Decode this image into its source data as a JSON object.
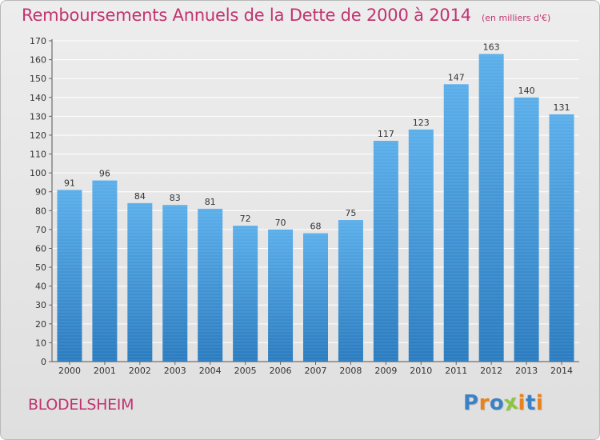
{
  "chart_data": {
    "type": "bar",
    "title": "Remboursements Annuels de la Dette de 2000 à 2014",
    "subtitle": "(en milliers d'€)",
    "xlabel": "",
    "ylabel": "",
    "categories": [
      "2000",
      "2001",
      "2002",
      "2003",
      "2004",
      "2005",
      "2006",
      "2007",
      "2008",
      "2009",
      "2010",
      "2011",
      "2012",
      "2013",
      "2014"
    ],
    "values": [
      91,
      96,
      84,
      83,
      81,
      72,
      70,
      68,
      75,
      117,
      123,
      147,
      163,
      140,
      131
    ],
    "ylim": [
      0,
      170
    ],
    "yticks": [
      0,
      10,
      20,
      30,
      40,
      50,
      60,
      70,
      80,
      90,
      100,
      110,
      120,
      130,
      140,
      150,
      160,
      170
    ],
    "grid": true
  },
  "place_label": "BLODELSHEIM",
  "logo": {
    "text": "Proxiti",
    "letters": [
      "P",
      "r",
      "o",
      "x",
      "i",
      "t",
      "i"
    ],
    "letter_colors": [
      "#3b82c4",
      "#e8821e",
      "#3b82c4",
      "#8cc63f",
      "#e8821e",
      "#3b82c4",
      "#e8821e"
    ]
  },
  "colors": {
    "bar_light": "#5aaeea",
    "bar_dark": "#2a7bbf",
    "title": "#c1336f",
    "axis_text": "#333333",
    "grid": "#ffffff"
  }
}
